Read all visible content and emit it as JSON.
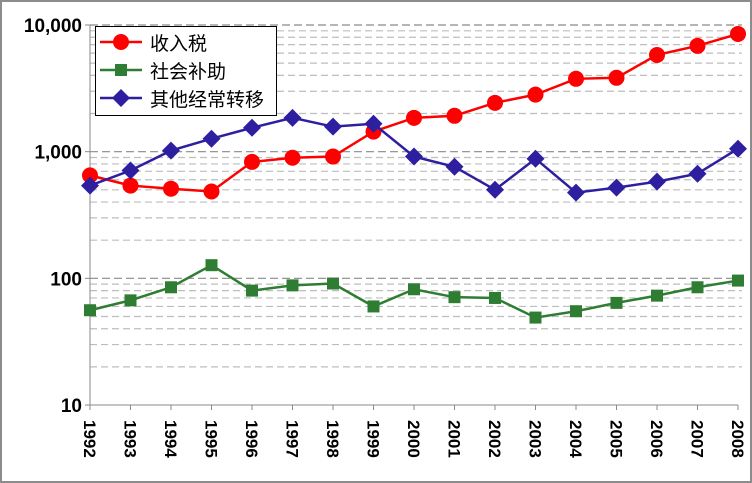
{
  "chart_data": {
    "type": "line",
    "title": "",
    "xlabel": "",
    "ylabel": "",
    "yscale": "log",
    "ylim": [
      10,
      10000
    ],
    "yticks": [
      10,
      100,
      1000,
      10000
    ],
    "ytick_labels": [
      "10",
      "100",
      "1,000",
      "10,000"
    ],
    "grid": true,
    "legend_position": "top-left",
    "categories": [
      "1992",
      "1993",
      "1994",
      "1995",
      "1996",
      "1997",
      "1998",
      "1999",
      "2000",
      "2001",
      "2002",
      "2003",
      "2004",
      "2005",
      "2006",
      "2007",
      "2008"
    ],
    "series": [
      {
        "name": "收入税",
        "color": "#ff0000",
        "marker": "circle",
        "values": [
          650,
          540,
          510,
          485,
          830,
          895,
          915,
          1440,
          1850,
          1920,
          2430,
          2820,
          3760,
          3830,
          5800,
          6850,
          8500
        ]
      },
      {
        "name": "社会补助",
        "color": "#2e7d32",
        "marker": "square",
        "values": [
          56,
          67,
          85,
          127,
          80,
          88,
          91,
          60,
          82,
          71,
          70,
          49,
          55,
          64,
          73,
          85,
          96
        ]
      },
      {
        "name": "其他经常转移",
        "color": "#2e1fa0",
        "marker": "diamond",
        "values": [
          540,
          710,
          1020,
          1265,
          1545,
          1850,
          1575,
          1660,
          915,
          760,
          500,
          880,
          475,
          520,
          580,
          670,
          1055
        ]
      }
    ]
  }
}
